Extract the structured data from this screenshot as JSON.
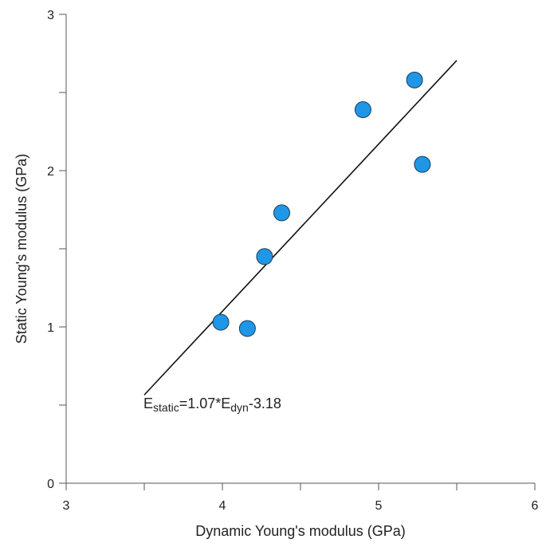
{
  "chart_data": {
    "type": "scatter",
    "x_label": "Dynamic Young's modulus (GPa)",
    "y_label": "Static Young's modulus (GPa)",
    "x": [
      3.99,
      4.16,
      4.27,
      4.38,
      4.9,
      5.23,
      5.28
    ],
    "values": [
      1.03,
      0.99,
      1.45,
      1.73,
      2.39,
      2.58,
      2.04
    ],
    "color": "#1f97e6",
    "xlim": [
      3,
      6
    ],
    "xticks": [
      3,
      4,
      5,
      6
    ],
    "xminor_ticks": [
      3.5,
      4.5,
      5.5
    ],
    "ylim": [
      0,
      3
    ],
    "yticks": [
      0,
      1,
      2,
      3
    ],
    "yminor_ticks": [
      0.5,
      1.5,
      2.5
    ],
    "fit": {
      "slope": 1.07,
      "intercept": -3.18,
      "xrange": [
        3.5,
        5.5
      ]
    },
    "annotation": [
      {
        "text": "E"
      },
      {
        "text": "static",
        "sub": true
      },
      {
        "text": "=1.07*E"
      },
      {
        "text": "dyn",
        "sub": true
      },
      {
        "text": "-3.18"
      }
    ]
  }
}
